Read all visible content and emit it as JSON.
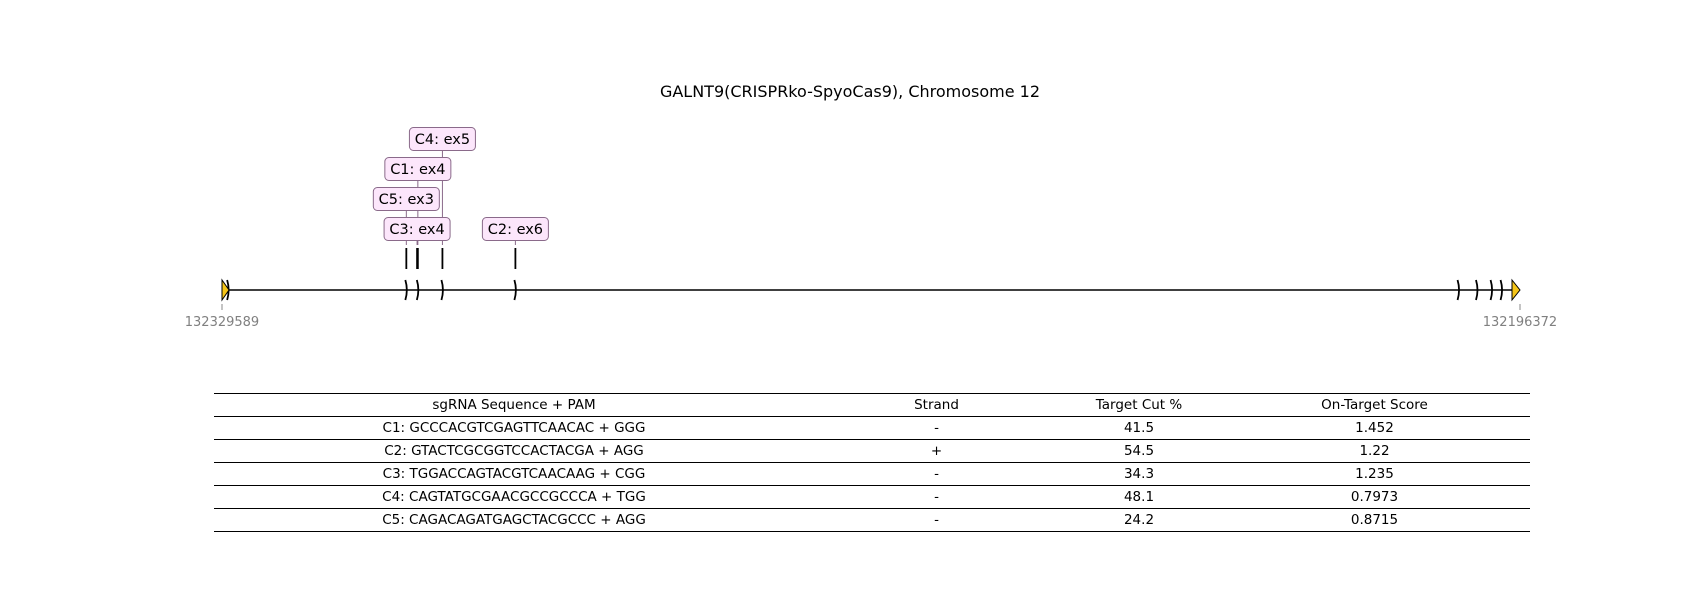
{
  "title": "GALNT9(CRISPRko-SpyoCas9), Chromosome 12",
  "gene_track": {
    "start_label": "132329589",
    "end_label": "132196372",
    "start_coord": 132329589,
    "end_coord": 132196372,
    "exon_coords": [
      131308000,
      131540000,
      131555000,
      131587000,
      131682000,
      132910000,
      132934000,
      132953000,
      132966000
    ],
    "arrow_color": "#f5c518",
    "label_fill": "#fce6fb",
    "label_border": "#8a6a8a",
    "guides": [
      {
        "label": "C4: ex5",
        "coord": 131587000,
        "level": 3
      },
      {
        "label": "C1: ex4",
        "coord": 131555000,
        "level": 2
      },
      {
        "label": "C5: ex3",
        "coord": 131540000,
        "level": 1
      },
      {
        "label": "C3: ex4",
        "coord": 131554000,
        "level": 0
      },
      {
        "label": "C2: ex6",
        "coord": 131682000,
        "level": 0
      }
    ]
  },
  "table": {
    "headers": [
      "sgRNA Sequence + PAM",
      "Strand",
      "Target Cut %",
      "On-Target Score"
    ],
    "rows": [
      [
        "C1: GCCCACGTCGAGTTCAACAC + GGG",
        "-",
        "41.5",
        "1.452"
      ],
      [
        "C2: GTACTCGCGGTCCACTACGA + AGG",
        "+",
        "54.5",
        "1.22"
      ],
      [
        "C3: TGGACCAGTACGTCAACAAG + CGG",
        "-",
        "34.3",
        "1.235"
      ],
      [
        "C4: CAGTATGCGAACGCCGCCCA + TGG",
        "-",
        "48.1",
        "0.7973"
      ],
      [
        "C5: CAGACAGATGAGCTACGCCC + AGG",
        "-",
        "24.2",
        "0.8715"
      ]
    ]
  }
}
